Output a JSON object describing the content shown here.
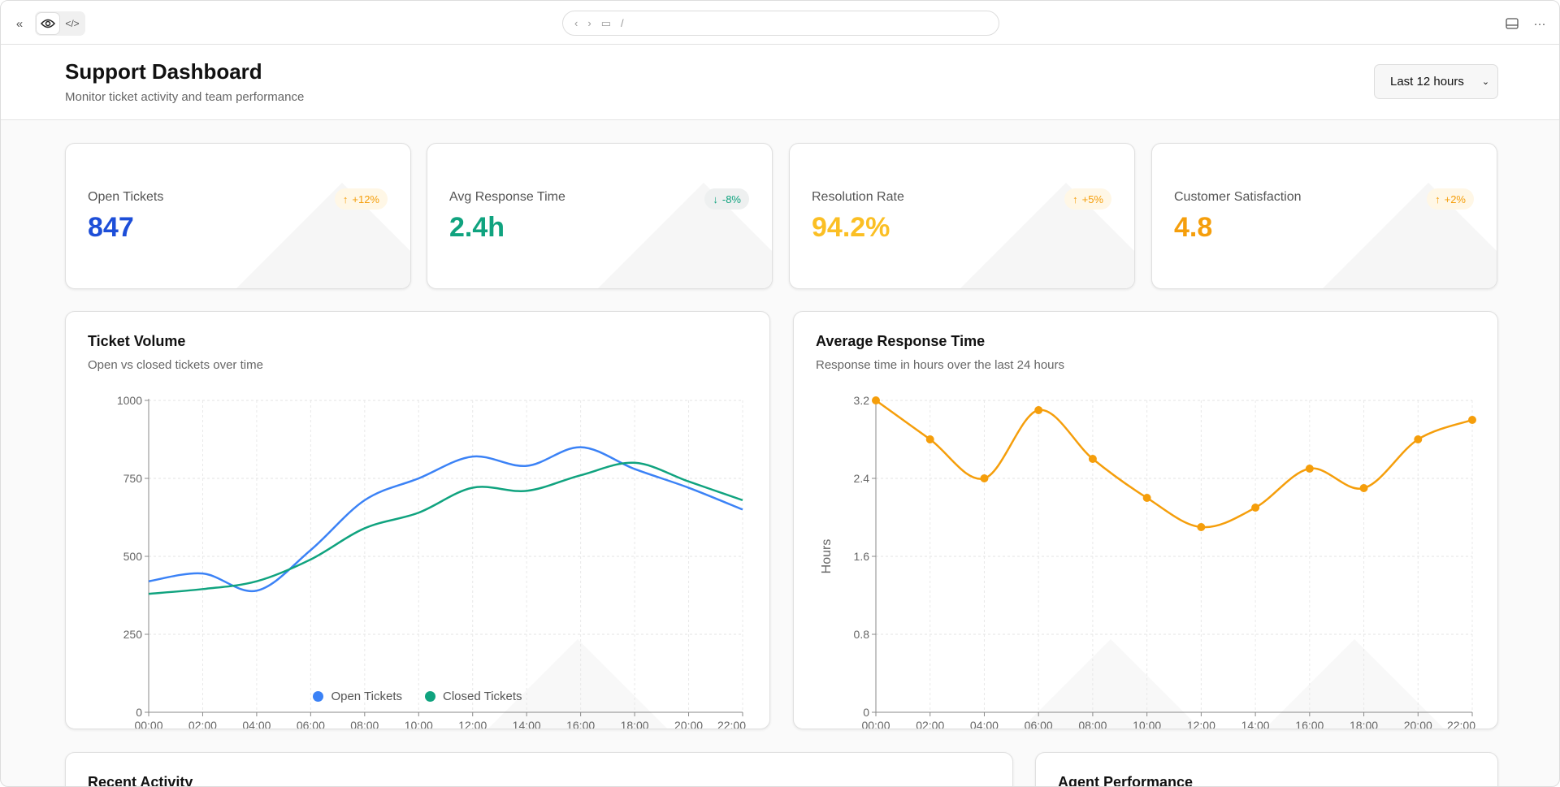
{
  "browser": {
    "url": "/",
    "icons": [
      "collapse-sidebar-icon",
      "eye-icon",
      "code-icon",
      "back-icon",
      "forward-icon",
      "monitor-icon",
      "panel-icon",
      "more-icon"
    ]
  },
  "header": {
    "title": "Support Dashboard",
    "subtitle": "Monitor ticket activity and team performance",
    "range_select": "Last 12 hours"
  },
  "stats": [
    {
      "label": "Open Tickets",
      "value": "847",
      "change": "+12%",
      "direction": "up",
      "value_color": "#1d4ed8",
      "badge_color": "#f59e0b",
      "badge_bg": "#fff7e6"
    },
    {
      "label": "Avg Response Time",
      "value": "2.4h",
      "change": "-8%",
      "direction": "down",
      "value_color": "#10a37f",
      "badge_color": "#10a37f",
      "badge_bg": "#eef0f0"
    },
    {
      "label": "Resolution Rate",
      "value": "94.2%",
      "change": "+5%",
      "direction": "up",
      "value_color": "#fbbf24",
      "badge_color": "#f59e0b",
      "badge_bg": "#fff7e6"
    },
    {
      "label": "Customer Satisfaction",
      "value": "4.8",
      "change": "+2%",
      "direction": "up",
      "value_color": "#f59e0b",
      "badge_color": "#f59e0b",
      "badge_bg": "#fff7e6"
    }
  ],
  "ticket_volume": {
    "title": "Ticket Volume",
    "subtitle": "Open vs closed tickets over time"
  },
  "response_time": {
    "title": "Average Response Time",
    "subtitle": "Response time in hours over the last 24 hours"
  },
  "recent_activity": {
    "title": "Recent Activity"
  },
  "agent_performance": {
    "title": "Agent Performance"
  },
  "chart_data": [
    {
      "type": "line",
      "categories": [
        "00:00",
        "02:00",
        "04:00",
        "06:00",
        "08:00",
        "10:00",
        "12:00",
        "14:00",
        "16:00",
        "18:00",
        "20:00",
        "22:00"
      ],
      "series": [
        {
          "name": "Open Tickets",
          "color": "#3b82f6",
          "values": [
            420,
            445,
            390,
            520,
            680,
            750,
            820,
            790,
            850,
            780,
            720,
            650
          ]
        },
        {
          "name": "Closed Tickets",
          "color": "#10a37f",
          "values": [
            380,
            395,
            420,
            490,
            590,
            640,
            720,
            710,
            760,
            800,
            740,
            680
          ]
        }
      ],
      "ylim": [
        0,
        1000
      ],
      "yticks": [
        "0",
        "250",
        "500",
        "750",
        "1000"
      ],
      "grid": true,
      "legend": "bottom",
      "smooth": true
    },
    {
      "type": "line",
      "categories": [
        "00:00",
        "02:00",
        "04:00",
        "06:00",
        "08:00",
        "10:00",
        "12:00",
        "14:00",
        "16:00",
        "18:00",
        "20:00",
        "22:00"
      ],
      "series": [
        {
          "color": "#f59e0b",
          "values": [
            3.2,
            2.8,
            2.4,
            3.1,
            2.6,
            2.2,
            1.9,
            2.1,
            2.5,
            2.3,
            2.8,
            3.0
          ]
        }
      ],
      "ylabel": "Hours",
      "ylim": [
        0,
        3.2
      ],
      "yticks": [
        "0",
        "0.8",
        "1.6",
        "2.4",
        "3.2"
      ],
      "grid": true,
      "markers": true,
      "smooth": true
    }
  ]
}
